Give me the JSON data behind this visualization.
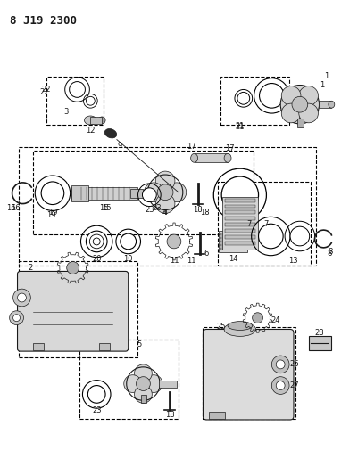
{
  "title": "8 J19 2300",
  "bg_color": "#ffffff",
  "title_fontsize": 9,
  "fig_width": 3.82,
  "fig_height": 5.33,
  "dpi": 100,
  "line_color": "#1a1a1a",
  "text_color": "#1a1a1a",
  "label_fontsize": 6.0
}
